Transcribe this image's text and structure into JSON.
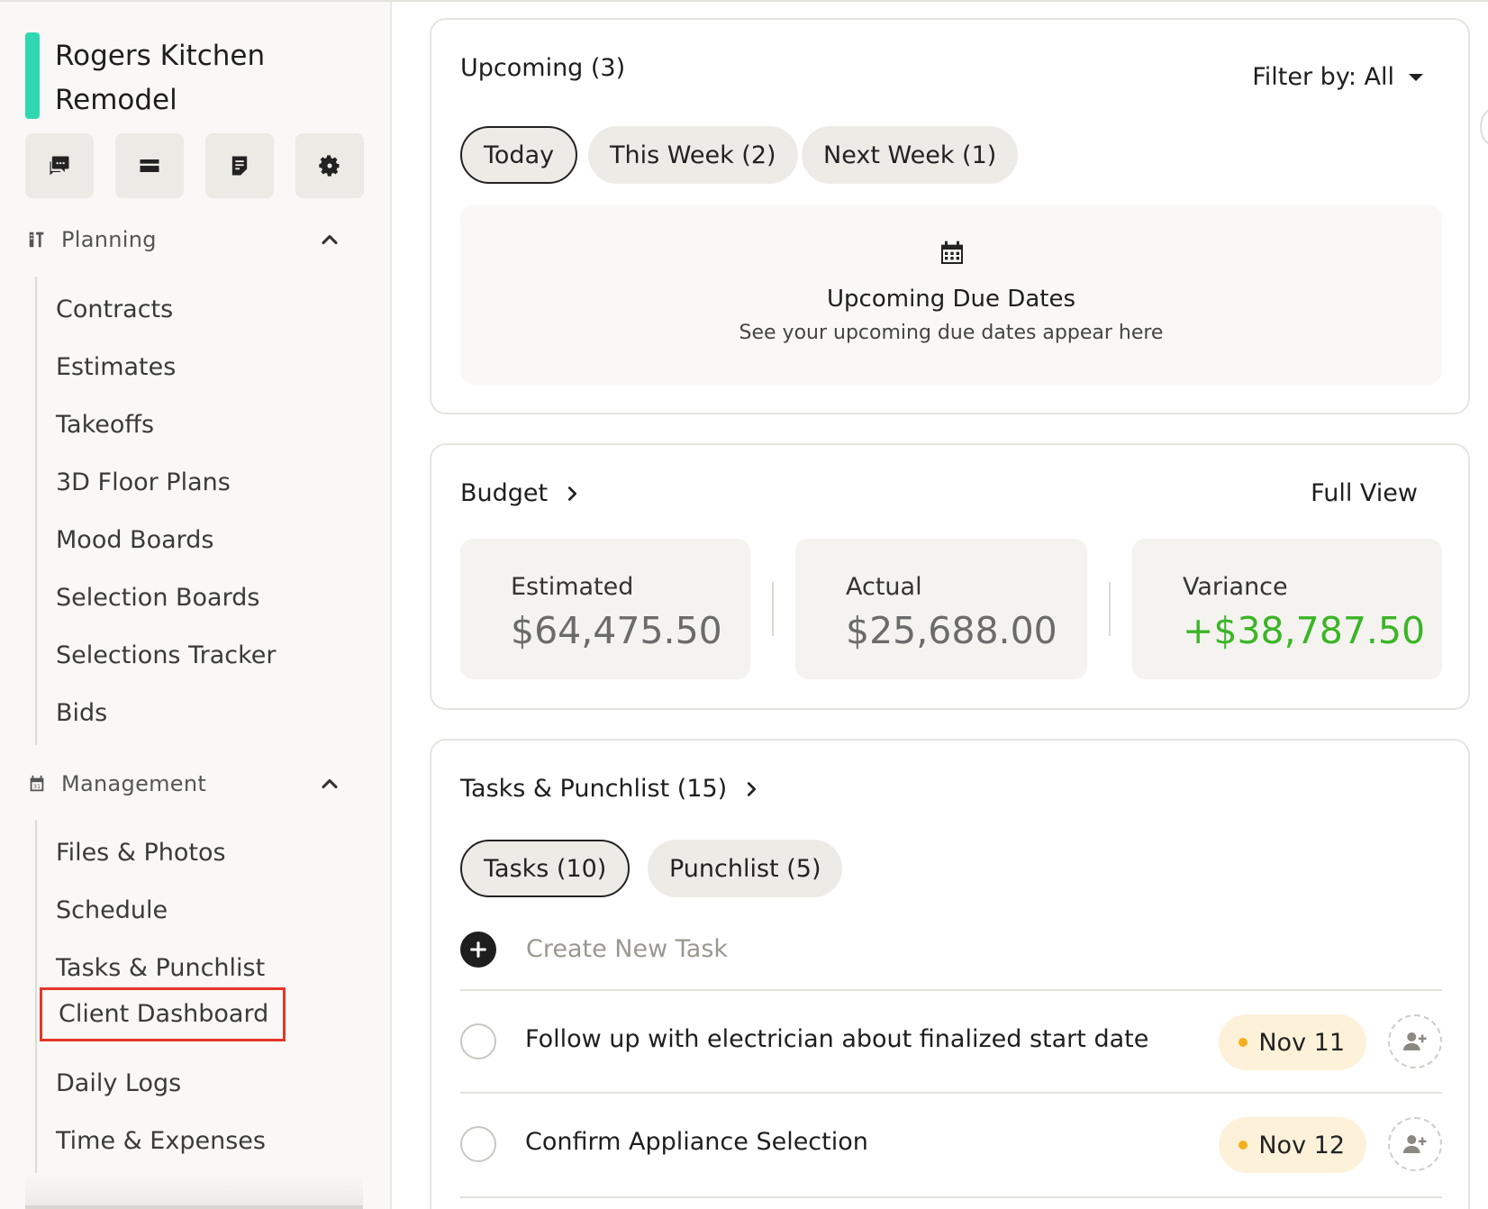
{
  "project": {
    "title": "Rogers Kitchen Remodel",
    "accent_color": "#2fd8b0"
  },
  "toolbar": {
    "icons": [
      "messages-icon",
      "inbox-icon",
      "notes-icon",
      "settings-icon"
    ]
  },
  "sidebar": {
    "planning": {
      "label": "Planning",
      "items": [
        "Contracts",
        "Estimates",
        "Takeoffs",
        "3D Floor Plans",
        "Mood Boards",
        "Selection Boards",
        "Selections Tracker",
        "Bids"
      ]
    },
    "management": {
      "label": "Management",
      "items": [
        "Files & Photos",
        "Schedule",
        "Tasks & Punchlist",
        "Client Dashboard",
        "Daily Logs",
        "Time & Expenses"
      ],
      "highlighted": "Client Dashboard"
    }
  },
  "upcoming": {
    "title": "Upcoming (3)",
    "filter_label": "Filter by: All",
    "tabs": [
      "Today",
      "This Week (2)",
      "Next Week (1)"
    ],
    "selected_tab": "Today",
    "empty_title": "Upcoming Due Dates",
    "empty_subtitle": "See your upcoming due dates appear here"
  },
  "budget": {
    "title": "Budget",
    "full_view_label": "Full View",
    "estimated_label": "Estimated",
    "estimated_value": "$64,475.50",
    "actual_label": "Actual",
    "actual_value": "$25,688.00",
    "variance_label": "Variance",
    "variance_value": "+$38,787.50",
    "variance_color": "#3bb526"
  },
  "tasks": {
    "title": "Tasks & Punchlist (15)",
    "tabs": [
      "Tasks (10)",
      "Punchlist (5)"
    ],
    "selected_tab": "Tasks (10)",
    "create_placeholder": "Create New Task",
    "items": [
      {
        "title": "Follow up with electrician about finalized start date",
        "due": "Nov 11"
      },
      {
        "title": "Confirm Appliance Selection",
        "due": "Nov 12"
      }
    ]
  }
}
